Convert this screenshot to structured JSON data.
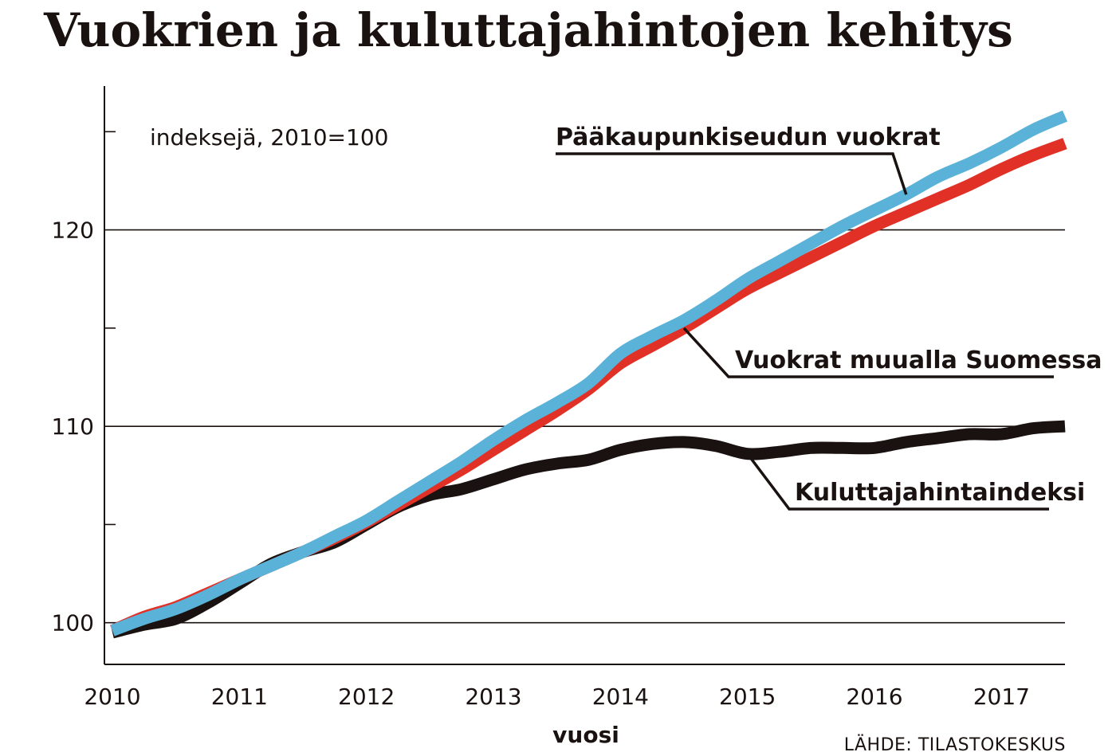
{
  "chart_data": {
    "type": "line",
    "title": "Vuokrien ja kuluttajahintojen kehitys",
    "subtitle": "indeksejä, 2010=100",
    "xlabel": "vuosi",
    "ylabel": "",
    "source": "LÄHDE: TILASTOKESKUS",
    "xlim": [
      2010,
      2017.5
    ],
    "ylim": [
      98,
      127
    ],
    "x_ticks": [
      "2010",
      "2011",
      "2012",
      "2013",
      "2014",
      "2015",
      "2016",
      "2017"
    ],
    "y_ticks": [
      "100",
      "110",
      "120"
    ],
    "grid": "horizontal at 100, 110, 120",
    "series": [
      {
        "name": "Kuluttajahintaindeksi",
        "color": "#1a1210",
        "points": [
          [
            2010.0,
            99.5
          ],
          [
            2010.25,
            99.9
          ],
          [
            2010.5,
            100.2
          ],
          [
            2010.75,
            101.0
          ],
          [
            2011.0,
            102.0
          ],
          [
            2011.25,
            103.0
          ],
          [
            2011.5,
            103.6
          ],
          [
            2011.75,
            104.1
          ],
          [
            2012.0,
            105.0
          ],
          [
            2012.25,
            105.9
          ],
          [
            2012.5,
            106.5
          ],
          [
            2012.75,
            106.8
          ],
          [
            2013.0,
            107.3
          ],
          [
            2013.25,
            107.8
          ],
          [
            2013.5,
            108.1
          ],
          [
            2013.75,
            108.3
          ],
          [
            2014.0,
            108.8
          ],
          [
            2014.25,
            109.1
          ],
          [
            2014.5,
            109.2
          ],
          [
            2014.75,
            109.0
          ],
          [
            2015.0,
            108.6
          ],
          [
            2015.25,
            108.7
          ],
          [
            2015.5,
            108.9
          ],
          [
            2015.75,
            108.9
          ],
          [
            2016.0,
            108.9
          ],
          [
            2016.25,
            109.2
          ],
          [
            2016.5,
            109.4
          ],
          [
            2016.75,
            109.6
          ],
          [
            2017.0,
            109.6
          ],
          [
            2017.25,
            109.9
          ],
          [
            2017.5,
            110.0
          ]
        ]
      },
      {
        "name": "Vuokrat muualla Suomessa",
        "color": "#e13127",
        "points": [
          [
            2010.0,
            99.6
          ],
          [
            2010.25,
            100.3
          ],
          [
            2010.5,
            100.8
          ],
          [
            2010.75,
            101.5
          ],
          [
            2011.0,
            102.2
          ],
          [
            2011.25,
            102.9
          ],
          [
            2011.5,
            103.6
          ],
          [
            2011.75,
            104.3
          ],
          [
            2012.0,
            105.1
          ],
          [
            2012.25,
            106.0
          ],
          [
            2012.5,
            106.9
          ],
          [
            2012.75,
            107.8
          ],
          [
            2013.0,
            108.8
          ],
          [
            2013.25,
            109.8
          ],
          [
            2013.5,
            110.8
          ],
          [
            2013.75,
            111.9
          ],
          [
            2014.0,
            113.2
          ],
          [
            2014.25,
            114.1
          ],
          [
            2014.5,
            115.0
          ],
          [
            2014.75,
            116.0
          ],
          [
            2015.0,
            117.0
          ],
          [
            2015.25,
            117.8
          ],
          [
            2015.5,
            118.6
          ],
          [
            2015.75,
            119.4
          ],
          [
            2016.0,
            120.2
          ],
          [
            2016.25,
            120.9
          ],
          [
            2016.5,
            121.6
          ],
          [
            2016.75,
            122.3
          ],
          [
            2017.0,
            123.1
          ],
          [
            2017.25,
            123.8
          ],
          [
            2017.5,
            124.4
          ]
        ]
      },
      {
        "name": "Pääkaupunkiseudun vuokrat",
        "color": "#5ab2d8",
        "points": [
          [
            2010.0,
            99.6
          ],
          [
            2010.25,
            100.2
          ],
          [
            2010.5,
            100.7
          ],
          [
            2010.75,
            101.4
          ],
          [
            2011.0,
            102.2
          ],
          [
            2011.25,
            102.9
          ],
          [
            2011.5,
            103.6
          ],
          [
            2011.75,
            104.4
          ],
          [
            2012.0,
            105.2
          ],
          [
            2012.25,
            106.2
          ],
          [
            2012.5,
            107.2
          ],
          [
            2012.75,
            108.2
          ],
          [
            2013.0,
            109.3
          ],
          [
            2013.25,
            110.3
          ],
          [
            2013.5,
            111.2
          ],
          [
            2013.75,
            112.2
          ],
          [
            2014.0,
            113.7
          ],
          [
            2014.25,
            114.6
          ],
          [
            2014.5,
            115.4
          ],
          [
            2014.75,
            116.4
          ],
          [
            2015.0,
            117.5
          ],
          [
            2015.25,
            118.4
          ],
          [
            2015.5,
            119.3
          ],
          [
            2015.75,
            120.2
          ],
          [
            2016.0,
            121.0
          ],
          [
            2016.25,
            121.8
          ],
          [
            2016.5,
            122.7
          ],
          [
            2016.75,
            123.4
          ],
          [
            2017.0,
            124.2
          ],
          [
            2017.25,
            125.1
          ],
          [
            2017.5,
            125.8
          ]
        ]
      }
    ],
    "annotations": [
      {
        "text": "Pääkaupunkiseudun vuokrat",
        "series": "Pääkaupunkiseudun vuokrat",
        "pointer_x": 2016.25
      },
      {
        "text": "Vuokrat muualla Suomessa",
        "series": "Vuokrat muualla Suomessa",
        "pointer_x": 2014.5
      },
      {
        "text": "Kuluttajahintaindeksi",
        "series": "Kuluttajahintaindeksi",
        "pointer_x": 2015.0
      }
    ]
  }
}
